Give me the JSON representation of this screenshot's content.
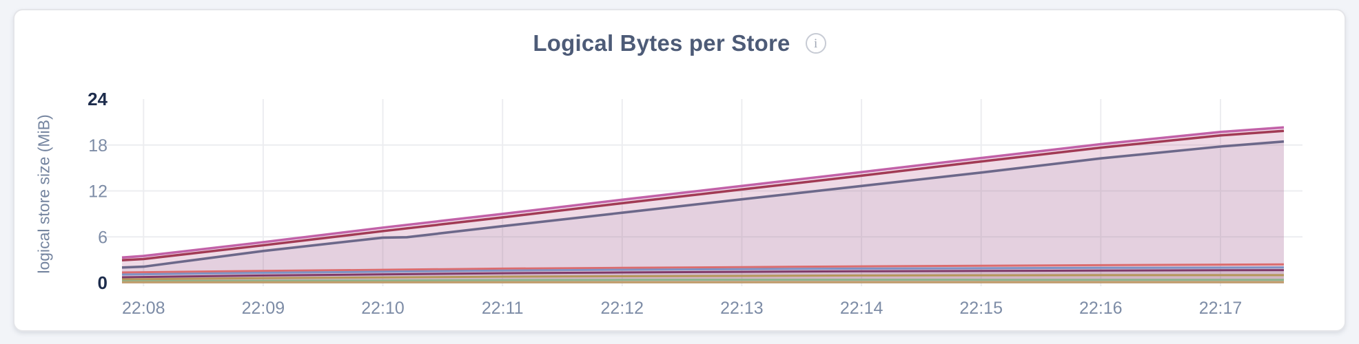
{
  "page": {
    "background_color": "#F2F4F8"
  },
  "card": {
    "background_color": "#FFFFFF",
    "border_color": "#E4E5E9"
  },
  "header": {
    "title": "Logical Bytes per Store",
    "title_color": "#4D5B77",
    "info_icon_glyph": "i"
  },
  "chart_data": {
    "type": "area",
    "title": "Logical Bytes per Store",
    "xlabel": "",
    "ylabel": "logical store size (MiB)",
    "x_tick_labels": [
      "22:08",
      "22:09",
      "22:10",
      "22:11",
      "22:12",
      "22:13",
      "22:14",
      "22:15",
      "22:16",
      "22:17"
    ],
    "x_domain_minutes": [
      -0.18,
      9.53
    ],
    "ylim": [
      0,
      24
    ],
    "y_tick_values": [
      0,
      6,
      12,
      18,
      24
    ],
    "y_gridline_values": [
      6,
      12,
      18
    ],
    "grid": true,
    "legend": "none",
    "style": {
      "grid_color": "#ECEDF0",
      "tick_color": "#7D8CA6",
      "tick_bold_color": "#1D2C4C",
      "axis_label_color": "#74849F"
    },
    "series": [
      {
        "name": "series-1-pink",
        "color": "#C262A8",
        "fill_opacity": 0.15,
        "line_width": 3.6,
        "points": [
          [
            -0.18,
            3.3
          ],
          [
            0,
            3.5
          ],
          [
            1,
            5.3
          ],
          [
            2,
            7.2
          ],
          [
            3,
            9.0
          ],
          [
            4,
            10.85
          ],
          [
            5,
            12.65
          ],
          [
            6,
            14.45
          ],
          [
            7,
            16.3
          ],
          [
            8,
            18.1
          ],
          [
            9,
            19.7
          ],
          [
            9.53,
            20.3
          ]
        ]
      },
      {
        "name": "series-2-crimson",
        "color": "#A23B55",
        "fill_opacity": 0.08,
        "line_width": 3.6,
        "points": [
          [
            -0.18,
            2.95
          ],
          [
            0,
            3.1
          ],
          [
            1,
            4.9
          ],
          [
            2,
            6.75
          ],
          [
            3,
            8.55
          ],
          [
            4,
            10.4
          ],
          [
            5,
            12.2
          ],
          [
            6,
            14.0
          ],
          [
            7,
            15.85
          ],
          [
            8,
            17.65
          ],
          [
            9,
            19.25
          ],
          [
            9.53,
            19.85
          ]
        ]
      },
      {
        "name": "series-3-slate",
        "color": "#6C688A",
        "fill_opacity": 0.08,
        "line_width": 3.6,
        "points": [
          [
            -0.18,
            2.0
          ],
          [
            0,
            2.1
          ],
          [
            1,
            4.15
          ],
          [
            2,
            5.9
          ],
          [
            2.2,
            5.95
          ],
          [
            3,
            7.4
          ],
          [
            4,
            9.15
          ],
          [
            5,
            10.9
          ],
          [
            6,
            12.65
          ],
          [
            7,
            14.4
          ],
          [
            8,
            16.25
          ],
          [
            9,
            17.8
          ],
          [
            9.53,
            18.45
          ]
        ]
      },
      {
        "name": "series-4-salmon",
        "color": "#DB6C6E",
        "fill_opacity": 0.07,
        "line_width": 3,
        "points": [
          [
            -0.18,
            1.35
          ],
          [
            1,
            1.55
          ],
          [
            2,
            1.7
          ],
          [
            3,
            1.85
          ],
          [
            4,
            1.95
          ],
          [
            5,
            2.05
          ],
          [
            6,
            2.15
          ],
          [
            7,
            2.22
          ],
          [
            8,
            2.3
          ],
          [
            9.53,
            2.4
          ]
        ]
      },
      {
        "name": "series-5-blue",
        "color": "#7E92C4",
        "fill_opacity": 0.07,
        "line_width": 3,
        "points": [
          [
            -0.18,
            1.08
          ],
          [
            1,
            1.3
          ],
          [
            2,
            1.45
          ],
          [
            3,
            1.6
          ],
          [
            4,
            1.7
          ],
          [
            5,
            1.78
          ],
          [
            6,
            1.85
          ],
          [
            7,
            1.9
          ],
          [
            8,
            1.95
          ],
          [
            9.53,
            2.0
          ]
        ]
      },
      {
        "name": "series-6-maroon",
        "color": "#7F3A68",
        "fill_opacity": 0.07,
        "line_width": 3,
        "points": [
          [
            -0.18,
            0.72
          ],
          [
            1,
            0.95
          ],
          [
            2,
            1.1
          ],
          [
            3,
            1.25
          ],
          [
            4,
            1.35
          ],
          [
            5,
            1.43
          ],
          [
            6,
            1.5
          ],
          [
            7,
            1.55
          ],
          [
            8,
            1.6
          ],
          [
            9.53,
            1.65
          ]
        ]
      },
      {
        "name": "series-7-tan",
        "color": "#B5975A",
        "fill_opacity": 0.07,
        "line_width": 3,
        "points": [
          [
            -0.18,
            0.45
          ],
          [
            1,
            0.6
          ],
          [
            2,
            0.7
          ],
          [
            3,
            0.8
          ],
          [
            4,
            0.85
          ],
          [
            5,
            0.9
          ],
          [
            6,
            0.95
          ],
          [
            7,
            0.98
          ],
          [
            8,
            1.0
          ],
          [
            9.53,
            1.0
          ]
        ]
      },
      {
        "name": "series-8-green",
        "color": "#8CB48C",
        "fill_opacity": 0.07,
        "line_width": 3,
        "points": [
          [
            -0.18,
            0.2
          ],
          [
            1,
            0.26
          ],
          [
            2,
            0.3
          ],
          [
            3,
            0.35
          ],
          [
            4,
            0.38
          ],
          [
            5,
            0.4
          ],
          [
            6,
            0.4
          ],
          [
            7,
            0.39
          ],
          [
            8,
            0.38
          ],
          [
            9.53,
            0.38
          ]
        ]
      },
      {
        "name": "series-9-gold",
        "color": "#C29E6B",
        "fill_opacity": 0.07,
        "line_width": 3,
        "points": [
          [
            -0.18,
            0.06
          ],
          [
            9.53,
            0.08
          ]
        ]
      }
    ]
  }
}
